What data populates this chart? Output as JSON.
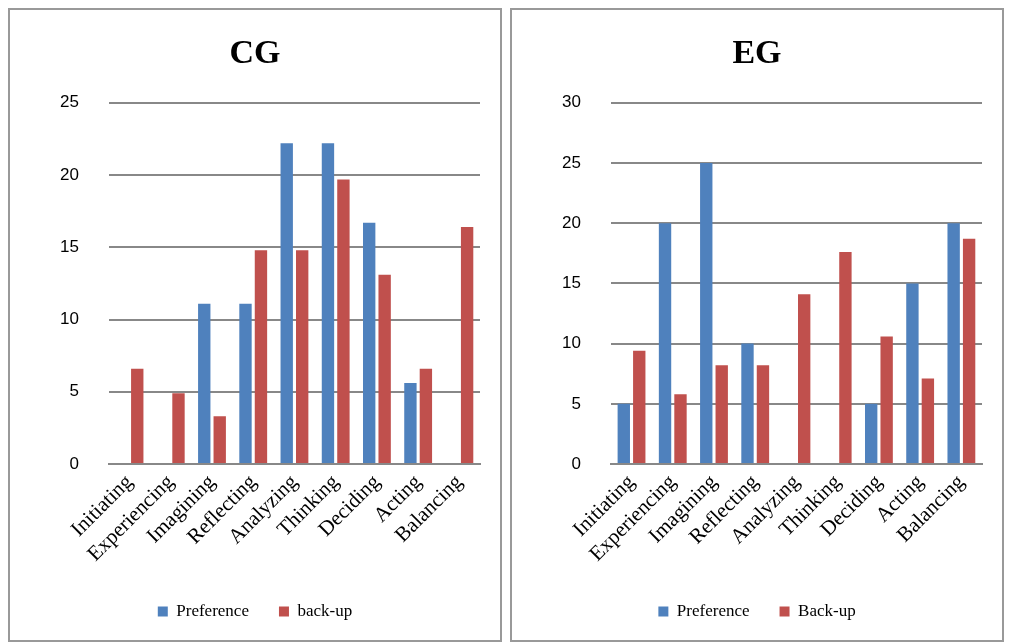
{
  "chart_data": [
    {
      "type": "bar",
      "title": "CG",
      "categories": [
        "Initiating",
        "Experiencing",
        "Imagining",
        "Reflecting",
        "Analyzing",
        "Thinking",
        "Deciding",
        "Acting",
        "Balancing"
      ],
      "series": [
        {
          "name": "Preference",
          "color": "#4f81bd",
          "values": [
            0,
            0,
            11.1,
            11.1,
            22.2,
            22.2,
            16.7,
            5.6,
            0
          ]
        },
        {
          "name": "back-up",
          "color": "#c0504d",
          "values": [
            6.6,
            4.9,
            3.3,
            14.8,
            14.8,
            19.7,
            13.1,
            6.6,
            16.4
          ]
        }
      ],
      "ylim": [
        0,
        25
      ],
      "yticks": [
        0,
        5,
        10,
        15,
        20,
        25
      ],
      "grid": "y",
      "legend": "bottom"
    },
    {
      "type": "bar",
      "title": "EG",
      "categories": [
        "Initiating",
        "Experiencing",
        "Imagining",
        "Reflecting",
        "Analyzing",
        "Thinking",
        "Deciding",
        "Acting",
        "Balancing"
      ],
      "series": [
        {
          "name": "Preference",
          "color": "#4f81bd",
          "values": [
            5,
            20,
            25,
            10,
            0,
            0,
            5,
            15,
            20
          ]
        },
        {
          "name": "Back-up",
          "color": "#c0504d",
          "values": [
            9.4,
            5.8,
            8.2,
            8.2,
            14.1,
            17.6,
            10.6,
            7.1,
            18.7
          ]
        }
      ],
      "ylim": [
        0,
        30
      ],
      "yticks": [
        0,
        5,
        10,
        15,
        20,
        25,
        30
      ],
      "grid": "y",
      "legend": "bottom"
    }
  ]
}
